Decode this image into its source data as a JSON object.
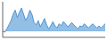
{
  "chart_data": {
    "type": "area",
    "x": [
      0,
      1,
      2,
      3,
      4,
      5,
      6,
      7,
      8,
      9,
      10,
      11,
      12,
      13,
      14,
      15,
      16,
      17,
      18,
      19,
      20,
      21,
      22,
      23,
      24,
      25,
      26,
      27,
      28,
      29,
      30,
      31,
      32,
      33,
      34,
      35,
      36,
      37,
      38,
      39,
      40,
      41,
      42,
      43,
      44,
      45,
      46,
      47,
      48,
      49
    ],
    "values": [
      0,
      -1,
      2,
      6,
      10,
      16,
      20,
      13,
      18,
      22,
      16,
      10,
      14,
      20,
      16,
      8,
      6,
      10,
      4,
      8,
      12,
      6,
      2,
      5,
      9,
      5,
      3,
      7,
      5,
      9,
      7,
      4,
      6,
      8,
      6,
      4,
      2,
      5,
      4,
      7,
      5,
      3,
      5,
      7,
      5,
      3,
      5,
      3,
      5,
      7
    ],
    "baseline": 0,
    "color": "#4d94d4",
    "xlim": [
      0,
      49
    ],
    "ylim": [
      -6,
      28
    ],
    "tick_labels": false,
    "grid": false
  }
}
